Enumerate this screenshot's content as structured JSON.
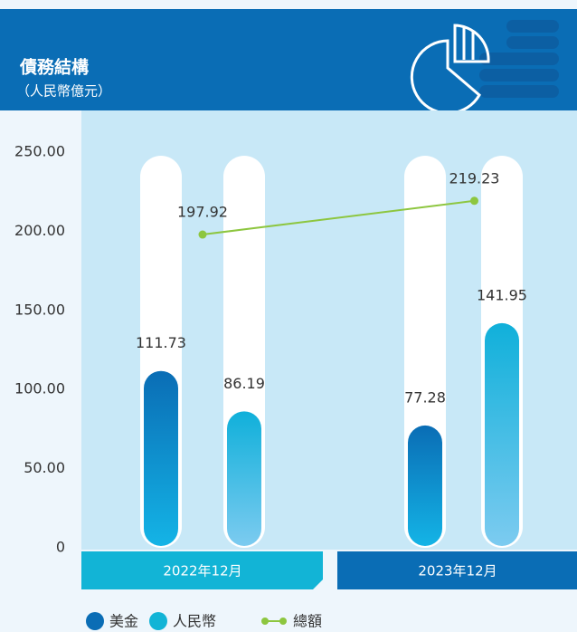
{
  "chart_data": {
    "type": "bar",
    "title": "債務結構",
    "subtitle": "（人民幣億元）",
    "categories": [
      "2022年12月",
      "2023年12月"
    ],
    "series": [
      {
        "name": "美金",
        "color": "#0a6db5",
        "values": [
          111.73,
          77.28
        ]
      },
      {
        "name": "人民幣",
        "color": "#12b4d6",
        "values": [
          86.19,
          141.95
        ]
      },
      {
        "name": "總額",
        "color": "#8dc63f",
        "type": "line",
        "values": [
          197.92,
          219.23
        ]
      }
    ],
    "ylim": [
      0,
      250
    ],
    "yticks": [
      0,
      {
        "value": 50,
        "label": "50.00"
      },
      {
        "value": 100,
        "label": "100.00"
      },
      {
        "value": 150,
        "label": "150.00"
      },
      {
        "value": 200,
        "label": "200.00"
      },
      {
        "value": 250,
        "label": "250.00"
      }
    ]
  }
}
